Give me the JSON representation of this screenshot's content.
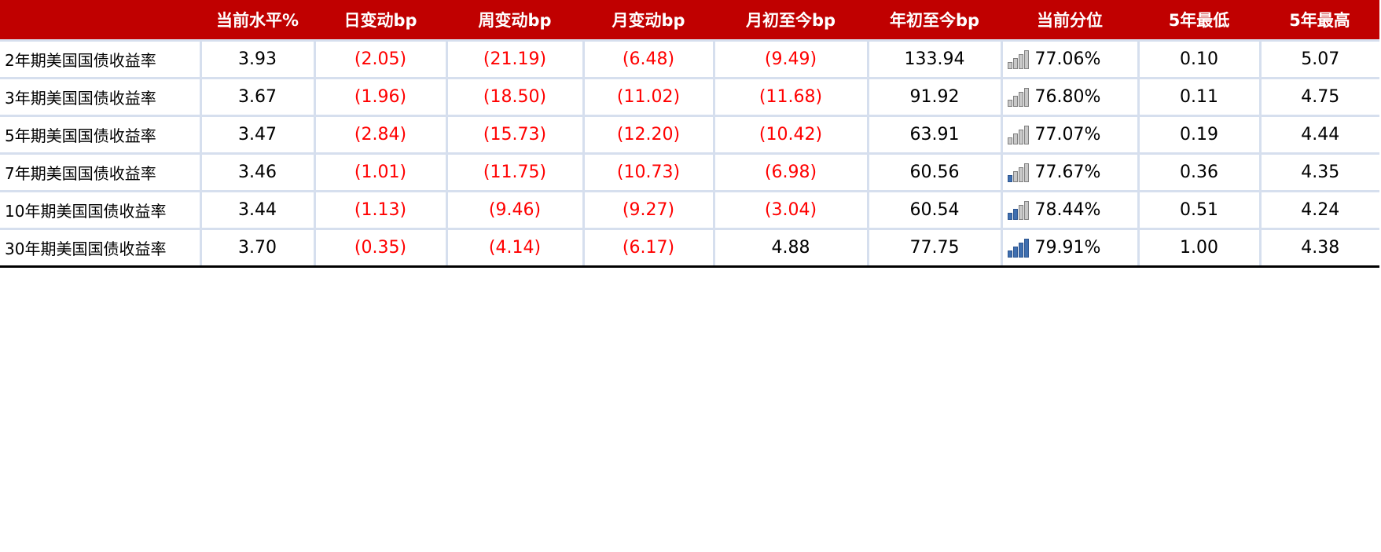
{
  "headers": [
    "",
    "当前水平%",
    "日变动bp",
    "周变动bp",
    "月变动bp",
    "月初至今bp",
    "年初至今bp",
    "当前分位",
    "5年最低",
    "5年最高"
  ],
  "colors": {
    "header_bg": "#c00000",
    "negative": "#ff0000",
    "grid": "#d6dfee",
    "icon_on": "#3f6fb0",
    "icon_off": "#c8c8c8"
  },
  "percentile_icon": "bar-rating-icon",
  "rows": [
    {
      "name": "2年期美国国债收益率",
      "current": "3.93",
      "day": "(2.05)",
      "week": "(21.19)",
      "month": "(6.48)",
      "mtd": "(9.49)",
      "ytd": "133.94",
      "percentile": "77.06%",
      "bars_filled": 0,
      "low5": "0.10",
      "high5": "5.07"
    },
    {
      "name": "3年期美国国债收益率",
      "current": "3.67",
      "day": "(1.96)",
      "week": "(18.50)",
      "month": "(11.02)",
      "mtd": "(11.68)",
      "ytd": "91.92",
      "percentile": "76.80%",
      "bars_filled": 0,
      "low5": "0.11",
      "high5": "4.75"
    },
    {
      "name": "5年期美国国债收益率",
      "current": "3.47",
      "day": "(2.84)",
      "week": "(15.73)",
      "month": "(12.20)",
      "mtd": "(10.42)",
      "ytd": "63.91",
      "percentile": "77.07%",
      "bars_filled": 0,
      "low5": "0.19",
      "high5": "4.44"
    },
    {
      "name": "7年期美国国债收益率",
      "current": "3.46",
      "day": "(1.01)",
      "week": "(11.75)",
      "month": "(10.73)",
      "mtd": "(6.98)",
      "ytd": "60.56",
      "percentile": "77.67%",
      "bars_filled": 1,
      "low5": "0.36",
      "high5": "4.35"
    },
    {
      "name": "10年期美国国债收益率",
      "current": "3.44",
      "day": "(1.13)",
      "week": "(9.46)",
      "month": "(9.27)",
      "mtd": "(3.04)",
      "ytd": "60.54",
      "percentile": "78.44%",
      "bars_filled": 2,
      "low5": "0.51",
      "high5": "4.24"
    },
    {
      "name": "30年期美国国债收益率",
      "current": "3.70",
      "day": "(0.35)",
      "week": "(4.14)",
      "month": "(6.17)",
      "mtd": "4.88",
      "ytd": "77.75",
      "percentile": "79.91%",
      "bars_filled": 4,
      "low5": "1.00",
      "high5": "4.38"
    }
  ]
}
